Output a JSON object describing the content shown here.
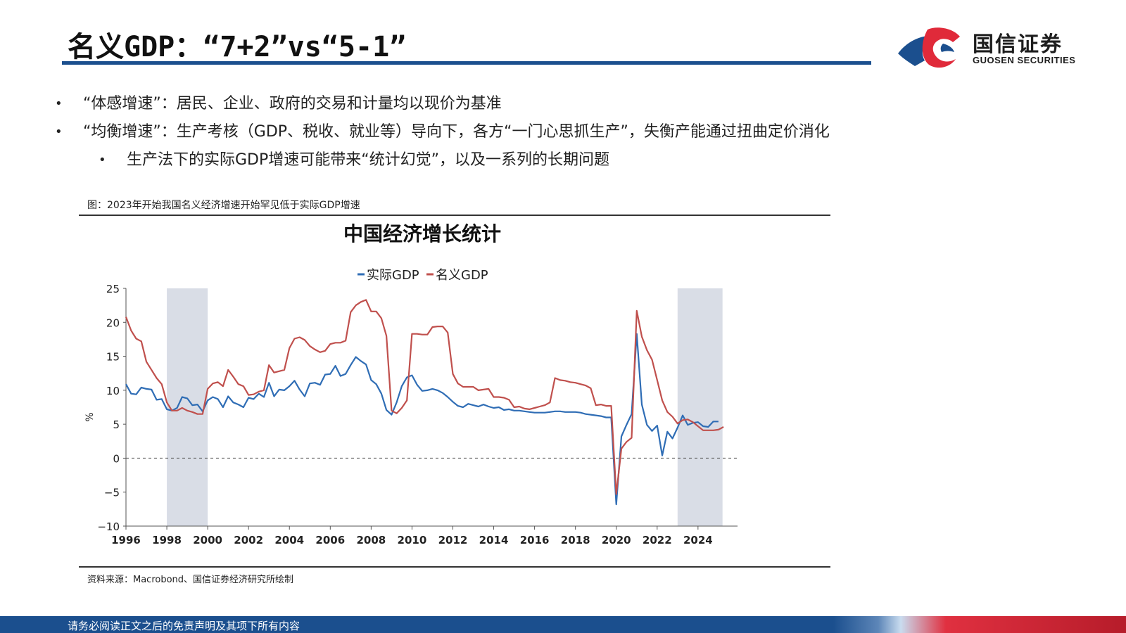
{
  "slide": {
    "title": "名义GDP：“7+2”vs“5-1”",
    "bullets": [
      {
        "text": "“体感增速”：居民、企业、政府的交易和计量均以现价为基准",
        "level": 1
      },
      {
        "text": "“均衡增速”：生产考核（GDP、税收、就业等）导向下，各方“一门心思抓生产”，失衡产能通过扭曲定价消化",
        "level": 1
      },
      {
        "text": "生产法下的实际GDP增速可能带来“统计幻觉”，以及一系列的长期问题",
        "level": 2
      }
    ],
    "bullet_marker": "•",
    "figure_caption": "图：2023年开始我国名义经济增速开始罕见低于实际GDP增速",
    "source": "资料来源：Macrobond、国信证券经济研究所绘制",
    "footer": "请务必阅读正文之后的免责声明及其项下所有内容"
  },
  "logo": {
    "cn": "国信证券",
    "en": "GUOSEN SECURITIES",
    "colors": [
      "#1b4f8e",
      "#e02a3a"
    ]
  },
  "colors": {
    "real": "#2f6db5",
    "nominal": "#c0504d",
    "shade": "#d9dde6",
    "title_rule": "#1b4f8e"
  },
  "chart_data": {
    "type": "line",
    "title": "中国经济增长统计",
    "ylabel": "%",
    "xlabel": "",
    "xlim": [
      1996,
      2025.9
    ],
    "ylim": [
      -10,
      25
    ],
    "xticks": [
      1996,
      1998,
      2000,
      2002,
      2004,
      2006,
      2008,
      2010,
      2012,
      2014,
      2016,
      2018,
      2020,
      2022,
      2024
    ],
    "yticks": [
      25,
      20,
      15,
      10,
      5,
      0,
      -5,
      -10
    ],
    "legend_position": "top-center",
    "zero_line": "dashed",
    "shaded_periods": [
      [
        1998,
        2000
      ],
      [
        2023,
        2025.2
      ]
    ],
    "series": [
      {
        "name": "实际GDP",
        "color": "#2f6db5",
        "points": [
          [
            1996.0,
            10.9
          ],
          [
            1996.25,
            9.5
          ],
          [
            1996.5,
            9.4
          ],
          [
            1996.75,
            10.4
          ],
          [
            1997.0,
            10.2
          ],
          [
            1997.25,
            10.1
          ],
          [
            1997.5,
            8.6
          ],
          [
            1997.75,
            8.7
          ],
          [
            1998.0,
            7.2
          ],
          [
            1998.25,
            7.0
          ],
          [
            1998.5,
            7.4
          ],
          [
            1998.75,
            9.0
          ],
          [
            1999.0,
            8.8
          ],
          [
            1999.25,
            7.8
          ],
          [
            1999.5,
            7.9
          ],
          [
            1999.75,
            6.9
          ],
          [
            2000.0,
            8.5
          ],
          [
            2000.25,
            9.0
          ],
          [
            2000.5,
            8.7
          ],
          [
            2000.75,
            7.5
          ],
          [
            2001.0,
            9.1
          ],
          [
            2001.25,
            8.2
          ],
          [
            2001.5,
            7.9
          ],
          [
            2001.75,
            7.5
          ],
          [
            2002.0,
            8.9
          ],
          [
            2002.25,
            8.7
          ],
          [
            2002.5,
            9.5
          ],
          [
            2002.75,
            9.0
          ],
          [
            2003.0,
            11.1
          ],
          [
            2003.25,
            9.1
          ],
          [
            2003.5,
            10.1
          ],
          [
            2003.75,
            10.0
          ],
          [
            2004.0,
            10.6
          ],
          [
            2004.25,
            11.4
          ],
          [
            2004.5,
            10.1
          ],
          [
            2004.75,
            9.1
          ],
          [
            2005.0,
            11.0
          ],
          [
            2005.25,
            11.1
          ],
          [
            2005.5,
            10.8
          ],
          [
            2005.75,
            12.3
          ],
          [
            2006.0,
            12.4
          ],
          [
            2006.25,
            13.6
          ],
          [
            2006.5,
            12.1
          ],
          [
            2006.75,
            12.4
          ],
          [
            2007.0,
            13.7
          ],
          [
            2007.25,
            14.9
          ],
          [
            2007.5,
            14.3
          ],
          [
            2007.75,
            13.8
          ],
          [
            2008.0,
            11.5
          ],
          [
            2008.25,
            10.9
          ],
          [
            2008.5,
            9.5
          ],
          [
            2008.75,
            7.1
          ],
          [
            2009.0,
            6.4
          ],
          [
            2009.25,
            8.2
          ],
          [
            2009.5,
            10.6
          ],
          [
            2009.75,
            11.9
          ],
          [
            2010.0,
            12.2
          ],
          [
            2010.25,
            10.8
          ],
          [
            2010.5,
            9.9
          ],
          [
            2010.75,
            10.0
          ],
          [
            2011.0,
            10.2
          ],
          [
            2011.25,
            10.0
          ],
          [
            2011.5,
            9.6
          ],
          [
            2011.75,
            9.0
          ],
          [
            2012.0,
            8.3
          ],
          [
            2012.25,
            7.7
          ],
          [
            2012.5,
            7.5
          ],
          [
            2012.75,
            8.0
          ],
          [
            2013.0,
            7.8
          ],
          [
            2013.25,
            7.6
          ],
          [
            2013.5,
            7.9
          ],
          [
            2013.75,
            7.6
          ],
          [
            2014.0,
            7.4
          ],
          [
            2014.25,
            7.5
          ],
          [
            2014.5,
            7.1
          ],
          [
            2014.75,
            7.2
          ],
          [
            2015.0,
            7.0
          ],
          [
            2015.25,
            7.0
          ],
          [
            2015.5,
            6.9
          ],
          [
            2015.75,
            6.8
          ],
          [
            2016.0,
            6.7
          ],
          [
            2016.25,
            6.7
          ],
          [
            2016.5,
            6.7
          ],
          [
            2016.75,
            6.8
          ],
          [
            2017.0,
            6.9
          ],
          [
            2017.25,
            6.9
          ],
          [
            2017.5,
            6.8
          ],
          [
            2017.75,
            6.8
          ],
          [
            2018.0,
            6.8
          ],
          [
            2018.25,
            6.7
          ],
          [
            2018.5,
            6.5
          ],
          [
            2018.75,
            6.4
          ],
          [
            2019.0,
            6.3
          ],
          [
            2019.25,
            6.2
          ],
          [
            2019.5,
            6.0
          ],
          [
            2019.75,
            6.0
          ],
          [
            2020.0,
            -6.8
          ],
          [
            2020.25,
            3.2
          ],
          [
            2020.5,
            4.9
          ],
          [
            2020.75,
            6.5
          ],
          [
            2021.0,
            18.3
          ],
          [
            2021.25,
            7.9
          ],
          [
            2021.5,
            4.9
          ],
          [
            2021.75,
            4.0
          ],
          [
            2022.0,
            4.8
          ],
          [
            2022.25,
            0.4
          ],
          [
            2022.5,
            3.9
          ],
          [
            2022.75,
            2.9
          ],
          [
            2023.0,
            4.5
          ],
          [
            2023.25,
            6.3
          ],
          [
            2023.5,
            4.9
          ],
          [
            2023.75,
            5.2
          ],
          [
            2024.0,
            5.3
          ],
          [
            2024.25,
            4.7
          ],
          [
            2024.5,
            4.6
          ],
          [
            2024.75,
            5.4
          ],
          [
            2025.0,
            5.4
          ]
        ]
      },
      {
        "name": "名义GDP",
        "color": "#c0504d",
        "points": [
          [
            1996.0,
            20.8
          ],
          [
            1996.25,
            18.8
          ],
          [
            1996.5,
            17.6
          ],
          [
            1996.75,
            17.2
          ],
          [
            1997.0,
            14.2
          ],
          [
            1997.25,
            13.0
          ],
          [
            1997.5,
            11.8
          ],
          [
            1997.75,
            10.9
          ],
          [
            1998.0,
            8.2
          ],
          [
            1998.25,
            7.0
          ],
          [
            1998.5,
            7.0
          ],
          [
            1998.75,
            7.4
          ],
          [
            1999.0,
            7.0
          ],
          [
            1999.25,
            6.8
          ],
          [
            1999.5,
            6.5
          ],
          [
            1999.75,
            6.5
          ],
          [
            2000.0,
            10.2
          ],
          [
            2000.25,
            11.0
          ],
          [
            2000.5,
            11.2
          ],
          [
            2000.75,
            10.6
          ],
          [
            2001.0,
            13.0
          ],
          [
            2001.25,
            12.0
          ],
          [
            2001.5,
            10.9
          ],
          [
            2001.75,
            10.6
          ],
          [
            2002.0,
            9.3
          ],
          [
            2002.25,
            9.4
          ],
          [
            2002.5,
            9.8
          ],
          [
            2002.75,
            10.0
          ],
          [
            2003.0,
            13.7
          ],
          [
            2003.25,
            12.6
          ],
          [
            2003.5,
            12.8
          ],
          [
            2003.75,
            13.0
          ],
          [
            2004.0,
            16.2
          ],
          [
            2004.25,
            17.6
          ],
          [
            2004.5,
            17.8
          ],
          [
            2004.75,
            17.4
          ],
          [
            2005.0,
            16.5
          ],
          [
            2005.25,
            16.0
          ],
          [
            2005.5,
            15.6
          ],
          [
            2005.75,
            15.8
          ],
          [
            2006.0,
            16.8
          ],
          [
            2006.25,
            17.0
          ],
          [
            2006.5,
            17.0
          ],
          [
            2006.75,
            17.3
          ],
          [
            2007.0,
            21.5
          ],
          [
            2007.25,
            22.5
          ],
          [
            2007.5,
            23.0
          ],
          [
            2007.75,
            23.3
          ],
          [
            2008.0,
            21.6
          ],
          [
            2008.25,
            21.6
          ],
          [
            2008.5,
            20.6
          ],
          [
            2008.75,
            18.0
          ],
          [
            2009.0,
            7.0
          ],
          [
            2009.25,
            6.6
          ],
          [
            2009.5,
            7.4
          ],
          [
            2009.75,
            8.5
          ],
          [
            2010.0,
            18.3
          ],
          [
            2010.25,
            18.3
          ],
          [
            2010.5,
            18.2
          ],
          [
            2010.75,
            18.2
          ],
          [
            2011.0,
            19.3
          ],
          [
            2011.25,
            19.4
          ],
          [
            2011.5,
            19.4
          ],
          [
            2011.75,
            18.5
          ],
          [
            2012.0,
            12.4
          ],
          [
            2012.25,
            11.0
          ],
          [
            2012.5,
            10.5
          ],
          [
            2012.75,
            10.5
          ],
          [
            2013.0,
            10.5
          ],
          [
            2013.25,
            10.0
          ],
          [
            2013.5,
            10.1
          ],
          [
            2013.75,
            10.2
          ],
          [
            2014.0,
            9.0
          ],
          [
            2014.25,
            9.0
          ],
          [
            2014.5,
            8.9
          ],
          [
            2014.75,
            8.6
          ],
          [
            2015.0,
            7.5
          ],
          [
            2015.25,
            7.6
          ],
          [
            2015.5,
            7.3
          ],
          [
            2015.75,
            7.2
          ],
          [
            2016.0,
            7.4
          ],
          [
            2016.25,
            7.6
          ],
          [
            2016.5,
            7.8
          ],
          [
            2016.75,
            8.2
          ],
          [
            2017.0,
            11.8
          ],
          [
            2017.25,
            11.5
          ],
          [
            2017.5,
            11.4
          ],
          [
            2017.75,
            11.2
          ],
          [
            2018.0,
            11.1
          ],
          [
            2018.25,
            10.9
          ],
          [
            2018.5,
            10.7
          ],
          [
            2018.75,
            10.3
          ],
          [
            2019.0,
            7.8
          ],
          [
            2019.25,
            7.9
          ],
          [
            2019.5,
            7.7
          ],
          [
            2019.75,
            7.7
          ],
          [
            2020.0,
            -5.3
          ],
          [
            2020.25,
            1.4
          ],
          [
            2020.5,
            2.4
          ],
          [
            2020.75,
            3.0
          ],
          [
            2021.0,
            21.7
          ],
          [
            2021.25,
            17.9
          ],
          [
            2021.5,
            15.9
          ],
          [
            2021.75,
            14.5
          ],
          [
            2022.0,
            11.5
          ],
          [
            2022.25,
            8.5
          ],
          [
            2022.5,
            6.8
          ],
          [
            2022.75,
            6.1
          ],
          [
            2023.0,
            5.1
          ],
          [
            2023.25,
            5.6
          ],
          [
            2023.5,
            5.7
          ],
          [
            2023.75,
            5.3
          ],
          [
            2024.0,
            4.7
          ],
          [
            2024.25,
            4.1
          ],
          [
            2024.5,
            4.1
          ],
          [
            2024.75,
            4.1
          ],
          [
            2025.0,
            4.2
          ],
          [
            2025.25,
            4.6
          ]
        ]
      }
    ]
  }
}
